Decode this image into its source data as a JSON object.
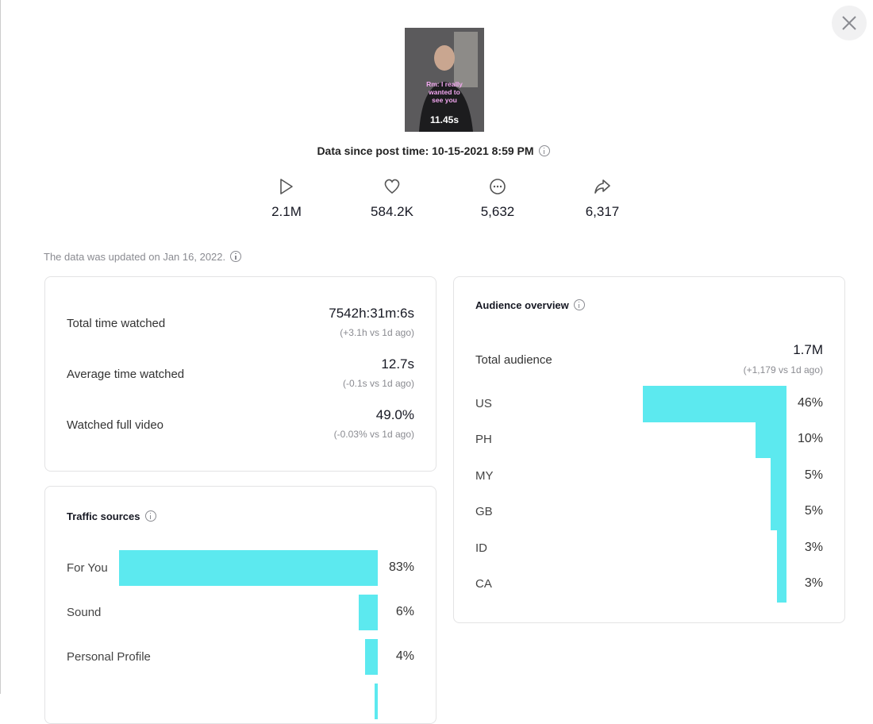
{
  "video": {
    "caption": "Rm: I really wanted to see you",
    "duration": "11.45s"
  },
  "post_time": "Data since post time: 10-15-2021 8:59 PM",
  "stats": [
    {
      "icon": "views",
      "value": "2.1M"
    },
    {
      "icon": "likes",
      "value": "584.2K"
    },
    {
      "icon": "comments",
      "value": "5,632"
    },
    {
      "icon": "shares",
      "value": "6,317"
    }
  ],
  "updated": "The data was updated on Jan 16, 2022.",
  "watch_metrics": [
    {
      "label": "Total time watched",
      "value": "7542h:31m:6s",
      "change": "(+3.1h vs 1d ago)"
    },
    {
      "label": "Average time watched",
      "value": "12.7s",
      "change": "(-0.1s vs 1d ago)"
    },
    {
      "label": "Watched full video",
      "value": "49.0%",
      "change": "(-0.03% vs 1d ago)"
    }
  ],
  "traffic_sources": {
    "title": "Traffic sources",
    "items": [
      {
        "label": "For You",
        "value": 83,
        "value_label": "83%"
      },
      {
        "label": "Sound",
        "value": 6,
        "value_label": "6%"
      },
      {
        "label": "Personal Profile",
        "value": 4,
        "value_label": "4%"
      },
      {
        "label": null,
        "value": 1
      }
    ]
  },
  "audience": {
    "title": "Audience overview",
    "total_label": "Total audience",
    "total": "1.7M",
    "change": "(+1,179 vs 1d ago)",
    "countries": [
      {
        "label": "US",
        "value": 46,
        "value_label": "46%"
      },
      {
        "label": "PH",
        "value": 10,
        "value_label": "10%"
      },
      {
        "label": "MY",
        "value": 5,
        "value_label": "5%"
      },
      {
        "label": "GB",
        "value": 5,
        "value_label": "5%"
      },
      {
        "label": "ID",
        "value": 3,
        "value_label": "3%"
      },
      {
        "label": "CA",
        "value": 3,
        "value_label": "3%"
      }
    ]
  }
}
